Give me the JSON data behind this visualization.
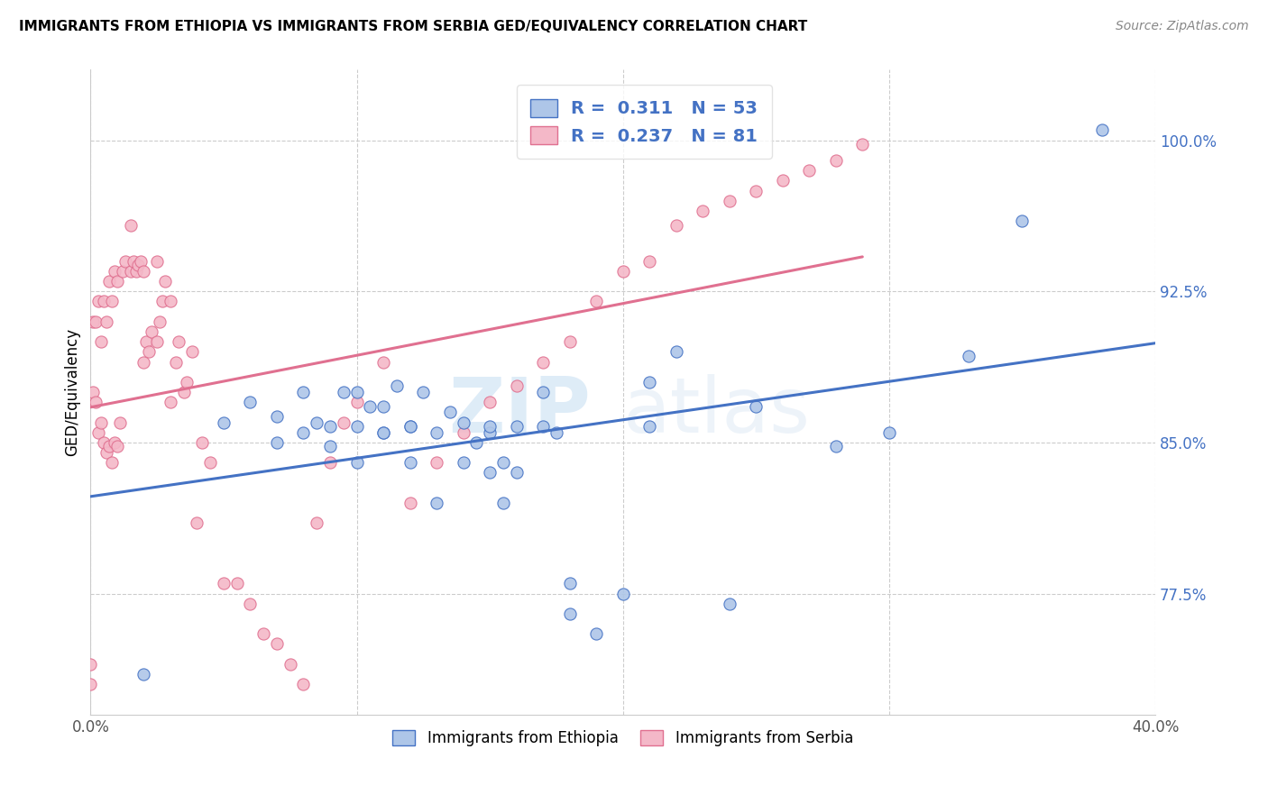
{
  "title": "IMMIGRANTS FROM ETHIOPIA VS IMMIGRANTS FROM SERBIA GED/EQUIVALENCY CORRELATION CHART",
  "source": "Source: ZipAtlas.com",
  "ylabel": "GED/Equivalency",
  "yticks": [
    "77.5%",
    "85.0%",
    "92.5%",
    "100.0%"
  ],
  "ytick_vals": [
    0.775,
    0.85,
    0.925,
    1.0
  ],
  "xlim": [
    0.0,
    0.4
  ],
  "ylim": [
    0.715,
    1.035
  ],
  "legend_R1": "0.311",
  "legend_N1": "53",
  "legend_R2": "0.237",
  "legend_N2": "81",
  "color_ethiopia": "#aec6e8",
  "color_ethiopia_line": "#4472c4",
  "color_serbia": "#f4b8c8",
  "color_serbia_line": "#e07090",
  "color_legend_text": "#4472c4",
  "watermark_zip": "ZIP",
  "watermark_atlas": "atlas",
  "ethiopia_scatter_x": [
    0.02,
    0.05,
    0.07,
    0.08,
    0.085,
    0.09,
    0.095,
    0.1,
    0.1,
    0.105,
    0.11,
    0.11,
    0.115,
    0.12,
    0.12,
    0.125,
    0.13,
    0.13,
    0.135,
    0.14,
    0.14,
    0.145,
    0.15,
    0.15,
    0.155,
    0.155,
    0.16,
    0.16,
    0.17,
    0.175,
    0.18,
    0.18,
    0.19,
    0.2,
    0.21,
    0.21,
    0.22,
    0.24,
    0.25,
    0.28,
    0.3,
    0.33,
    0.35,
    0.38,
    0.06,
    0.07,
    0.08,
    0.09,
    0.1,
    0.11,
    0.12,
    0.15,
    0.17
  ],
  "ethiopia_scatter_y": [
    0.735,
    0.86,
    0.863,
    0.855,
    0.86,
    0.848,
    0.875,
    0.84,
    0.858,
    0.868,
    0.855,
    0.868,
    0.878,
    0.84,
    0.858,
    0.875,
    0.82,
    0.855,
    0.865,
    0.84,
    0.86,
    0.85,
    0.835,
    0.855,
    0.82,
    0.84,
    0.835,
    0.858,
    0.875,
    0.855,
    0.765,
    0.78,
    0.755,
    0.775,
    0.858,
    0.88,
    0.895,
    0.77,
    0.868,
    0.848,
    0.855,
    0.893,
    0.96,
    1.005,
    0.87,
    0.85,
    0.875,
    0.858,
    0.875,
    0.855,
    0.858,
    0.858,
    0.858
  ],
  "serbia_scatter_x": [
    0.0,
    0.0,
    0.001,
    0.001,
    0.002,
    0.002,
    0.003,
    0.003,
    0.004,
    0.004,
    0.005,
    0.005,
    0.006,
    0.006,
    0.007,
    0.007,
    0.008,
    0.008,
    0.009,
    0.009,
    0.01,
    0.01,
    0.011,
    0.012,
    0.013,
    0.015,
    0.015,
    0.016,
    0.017,
    0.018,
    0.019,
    0.02,
    0.02,
    0.021,
    0.022,
    0.023,
    0.025,
    0.025,
    0.026,
    0.027,
    0.028,
    0.03,
    0.03,
    0.032,
    0.033,
    0.035,
    0.036,
    0.038,
    0.04,
    0.042,
    0.045,
    0.05,
    0.055,
    0.06,
    0.065,
    0.07,
    0.075,
    0.08,
    0.085,
    0.09,
    0.095,
    0.1,
    0.11,
    0.12,
    0.13,
    0.14,
    0.15,
    0.16,
    0.17,
    0.18,
    0.19,
    0.2,
    0.21,
    0.22,
    0.23,
    0.24,
    0.25,
    0.26,
    0.27,
    0.28,
    0.29
  ],
  "serbia_scatter_y": [
    0.73,
    0.74,
    0.875,
    0.91,
    0.87,
    0.91,
    0.855,
    0.92,
    0.86,
    0.9,
    0.85,
    0.92,
    0.845,
    0.91,
    0.848,
    0.93,
    0.84,
    0.92,
    0.85,
    0.935,
    0.848,
    0.93,
    0.86,
    0.935,
    0.94,
    0.935,
    0.958,
    0.94,
    0.935,
    0.938,
    0.94,
    0.89,
    0.935,
    0.9,
    0.895,
    0.905,
    0.9,
    0.94,
    0.91,
    0.92,
    0.93,
    0.87,
    0.92,
    0.89,
    0.9,
    0.875,
    0.88,
    0.895,
    0.81,
    0.85,
    0.84,
    0.78,
    0.78,
    0.77,
    0.755,
    0.75,
    0.74,
    0.73,
    0.81,
    0.84,
    0.86,
    0.87,
    0.89,
    0.82,
    0.84,
    0.855,
    0.87,
    0.878,
    0.89,
    0.9,
    0.92,
    0.935,
    0.94,
    0.958,
    0.965,
    0.97,
    0.975,
    0.98,
    0.985,
    0.99,
    0.998
  ]
}
